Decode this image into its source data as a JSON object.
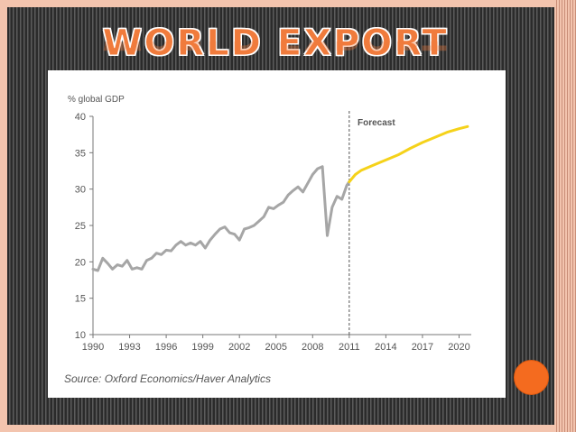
{
  "slide": {
    "title": "WORLD EXPORT"
  },
  "chart_data": {
    "type": "line",
    "ylabel": "% global GDP",
    "ylim": [
      10,
      40
    ],
    "yticks": [
      10,
      15,
      20,
      25,
      30,
      35,
      40
    ],
    "xlim": [
      1990,
      2021
    ],
    "xticks": [
      1990,
      1993,
      1996,
      1999,
      2002,
      2005,
      2008,
      2011,
      2014,
      2017,
      2020
    ],
    "annotation": "Forecast",
    "forecast_start": 2011,
    "source": "Source: Oxford Economics/Haver Analytics",
    "grid": false,
    "series": [
      {
        "color": "#a6a6a6",
        "points": [
          [
            1990.0,
            19.0
          ],
          [
            1990.4,
            18.8
          ],
          [
            1990.8,
            20.5
          ],
          [
            1991.2,
            19.8
          ],
          [
            1991.6,
            19.0
          ],
          [
            1992.0,
            19.6
          ],
          [
            1992.4,
            19.4
          ],
          [
            1992.8,
            20.2
          ],
          [
            1993.2,
            19.0
          ],
          [
            1993.6,
            19.2
          ],
          [
            1994.0,
            19.0
          ],
          [
            1994.4,
            20.2
          ],
          [
            1994.8,
            20.5
          ],
          [
            1995.2,
            21.2
          ],
          [
            1995.6,
            21.0
          ],
          [
            1996.0,
            21.6
          ],
          [
            1996.4,
            21.5
          ],
          [
            1996.8,
            22.3
          ],
          [
            1997.2,
            22.8
          ],
          [
            1997.6,
            22.3
          ],
          [
            1998.0,
            22.6
          ],
          [
            1998.4,
            22.3
          ],
          [
            1998.8,
            22.8
          ],
          [
            1999.2,
            21.9
          ],
          [
            1999.6,
            23.0
          ],
          [
            2000.0,
            23.8
          ],
          [
            2000.4,
            24.5
          ],
          [
            2000.8,
            24.8
          ],
          [
            2001.2,
            24.0
          ],
          [
            2001.6,
            23.8
          ],
          [
            2002.0,
            23.0
          ],
          [
            2002.4,
            24.5
          ],
          [
            2002.8,
            24.7
          ],
          [
            2003.2,
            25.0
          ],
          [
            2003.6,
            25.6
          ],
          [
            2004.0,
            26.2
          ],
          [
            2004.4,
            27.5
          ],
          [
            2004.8,
            27.3
          ],
          [
            2005.2,
            27.8
          ],
          [
            2005.6,
            28.2
          ],
          [
            2006.0,
            29.2
          ],
          [
            2006.4,
            29.8
          ],
          [
            2006.8,
            30.3
          ],
          [
            2007.2,
            29.6
          ],
          [
            2007.6,
            30.8
          ],
          [
            2008.0,
            32.0
          ],
          [
            2008.4,
            32.8
          ],
          [
            2008.8,
            33.1
          ],
          [
            2009.2,
            23.6
          ],
          [
            2009.6,
            27.5
          ],
          [
            2010.0,
            29.0
          ],
          [
            2010.4,
            28.6
          ],
          [
            2010.8,
            30.5
          ],
          [
            2011.0,
            31.0
          ]
        ]
      },
      {
        "color": "#f5d21a",
        "points": [
          [
            2011.0,
            31.0
          ],
          [
            2011.5,
            32.0
          ],
          [
            2012.0,
            32.6
          ],
          [
            2013.0,
            33.3
          ],
          [
            2014.0,
            34.0
          ],
          [
            2015.0,
            34.7
          ],
          [
            2016.0,
            35.6
          ],
          [
            2017.0,
            36.4
          ],
          [
            2018.0,
            37.1
          ],
          [
            2019.0,
            37.8
          ],
          [
            2020.0,
            38.3
          ],
          [
            2020.7,
            38.6
          ]
        ]
      }
    ]
  },
  "decor": {
    "accent": "#f07b3c",
    "dot_color": "#f46b1f"
  }
}
